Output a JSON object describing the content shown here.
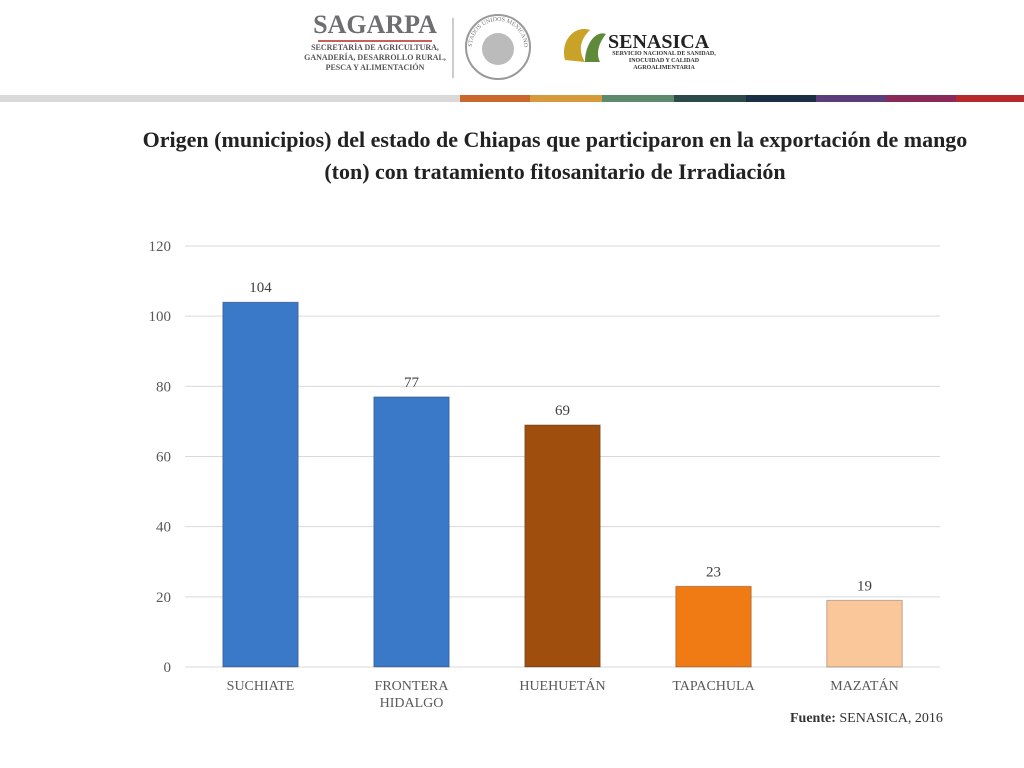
{
  "header": {
    "sagarpa": "SAGARPA",
    "sagarpa_subtitle": "SECRETARÍA DE AGRICULTURA, GANADERÍA, DESARROLLO RURAL, PESCA Y ALIMENTACIÓN",
    "seal_text": "ESTADOS UNIDOS MEXICANOS",
    "senasica": "SENASICA",
    "senasica_subtitle": "SERVICIO NACIONAL DE SANIDAD, INOCUIDAD Y CALIDAD AGROALIMENTARIA"
  },
  "chart_data": {
    "type": "bar",
    "title": "Origen (municipios) del estado de Chiapas que participaron en la exportación de mango (ton) con tratamiento fitosanitario de Irradiación",
    "categories": [
      "SUCHIATE",
      "FRONTERA HIDALGO",
      "HUEHUETÁN",
      "TAPACHULA",
      "MAZATÁN"
    ],
    "values": [
      104,
      77,
      69,
      23,
      19
    ],
    "colors": [
      "#3a78c8",
      "#3a78c8",
      "#a04e0e",
      "#f07a14",
      "#f9c79a"
    ],
    "ylim": [
      0,
      120
    ],
    "yticks": [
      0,
      20,
      40,
      60,
      80,
      100,
      120
    ],
    "grid": true
  },
  "source": {
    "label": "Fuente:",
    "text": "SENASICA, 2016"
  }
}
